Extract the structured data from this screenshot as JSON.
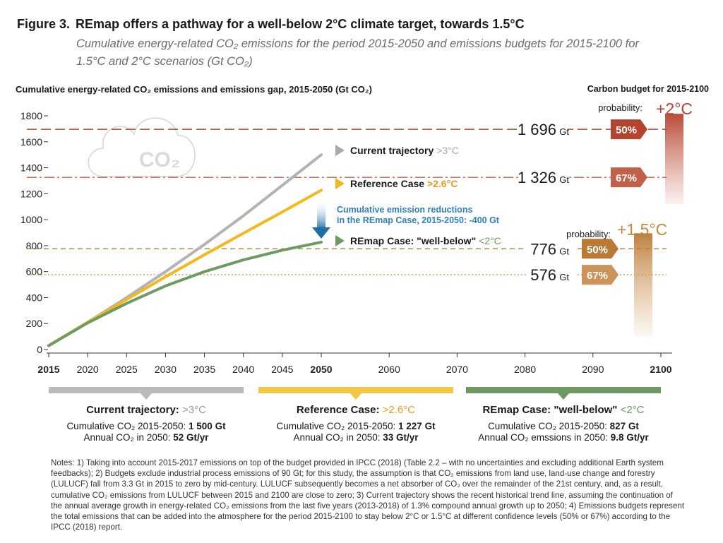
{
  "figure": {
    "number": "Figure 3.",
    "title": "REmap offers a pathway for a well-below 2°C climate target, towards 1.5°C",
    "subtitle": "Cumulative energy-related CO₂ emissions for the period 2015-2050 and emissions budgets for 2015-2100 for 1.5°C and 2°C scenarios (Gt CO₂)"
  },
  "chart_data": {
    "type": "line",
    "title": "Cumulative energy-related CO₂ emissions and emissions gap, 2015-2050 (Gt CO₂)",
    "right_title": "Carbon budget for 2015-2100",
    "ylim": [
      0,
      1800
    ],
    "yticks": [
      0,
      200,
      400,
      600,
      800,
      1000,
      1200,
      1400,
      1600,
      1800
    ],
    "xticks": [
      "2015",
      "2020",
      "2025",
      "2030",
      "2035",
      "2040",
      "2045",
      "2050",
      "2060",
      "2070",
      "2080",
      "2090",
      "2100"
    ],
    "bold_xticks": [
      "2015",
      "2050",
      "2100"
    ],
    "grid": false,
    "cloud_label": "CO₂",
    "series": [
      {
        "name": "Current trajectory",
        "tag": ">3°C",
        "color": "#b3b3b3",
        "x": [
          2015,
          2020,
          2025,
          2030,
          2035,
          2040,
          2045,
          2050
        ],
        "y": [
          30,
          210,
          400,
          600,
          810,
          1030,
          1265,
          1500
        ]
      },
      {
        "name": "Reference Case",
        "tag": ">2.6°C",
        "color": "#f2b81c",
        "x": [
          2015,
          2020,
          2025,
          2030,
          2035,
          2040,
          2045,
          2050
        ],
        "y": [
          30,
          210,
          385,
          560,
          730,
          895,
          1060,
          1227
        ]
      },
      {
        "name": "REmap Case: \"well-below\"",
        "tag": "<2°C",
        "color": "#6f9a62",
        "x": [
          2015,
          2020,
          2025,
          2030,
          2035,
          2040,
          2045,
          2050
        ],
        "y": [
          30,
          205,
          355,
          490,
          600,
          690,
          765,
          827
        ]
      }
    ],
    "reduction_annotation": {
      "line1": "Cumulative emission reductions",
      "line2": "in the REmap Case, 2015-2050: -400 Gt"
    },
    "budgets": [
      {
        "scenario": "+2°C",
        "value": 1696,
        "value_label": "1 696",
        "unit": "Gt",
        "probability": "50%",
        "color": "#b5442f"
      },
      {
        "scenario": "+2°C",
        "value": 1326,
        "value_label": "1 326",
        "unit": "Gt",
        "probability": "67%",
        "color": "#c2614a"
      },
      {
        "scenario": "+1.5°C",
        "value": 776,
        "value_label": "776",
        "unit": "Gt",
        "probability": "50%",
        "color": "#b97a36"
      },
      {
        "scenario": "+1.5°C",
        "value": 576,
        "value_label": "576",
        "unit": "Gt",
        "probability": "67%",
        "color": "#cc9359"
      }
    ],
    "budget_labels": {
      "probability": "probability:",
      "two_c": "+2°C",
      "one_five_c": "+1.5°C"
    }
  },
  "summaries": [
    {
      "title": "Current trajectory:",
      "tag": ">3°C",
      "color": "#bbbbbb",
      "tag_color": "#9a9a9a",
      "line1_label": "Cumulative CO₂ 2015-2050: ",
      "line1_value": "1 500 Gt",
      "line2_label": "Annual CO₂ in 2050: ",
      "line2_value": "52 Gt/yr"
    },
    {
      "title": "Reference Case:",
      "tag": ">2.6°C",
      "color": "#f2c744",
      "tag_color": "#e99a1c",
      "line1_label": "Cumulative CO₂ 2015-2050: ",
      "line1_value": "1 227 Gt",
      "line2_label": "Annual CO₂ in 2050: ",
      "line2_value": "33 Gt/yr"
    },
    {
      "title": "REmap Case: \"well-below\"",
      "tag": "<2°C",
      "color": "#6e9a61",
      "tag_color": "#6e9a61",
      "line1_label": "Cumulative CO₂ 2015-2050: ",
      "line1_value": "827 Gt",
      "line2_label": "Annual CO₂ emssions in 2050: ",
      "line2_value": "9.8 Gt/yr"
    }
  ],
  "notes": "Notes: 1) Taking into account 2015-2017 emissions on top of the budget provided in IPCC (2018) (Table 2.2 – with no uncertainties and excluding additional Earth system feedbacks); 2) Budgets exclude industrial process emissions of 90 Gt; for this study, the assumption is that CO₂ emissions from land use, land-use change and forestry (LULUCF) fall from 3.3 Gt in 2015 to zero by mid-century. LULUCF subsequently becomes a net absorber of CO₂ over the remainder of the 21st century, and, as a result, cumulative CO₂ emissions from LULUCF between 2015 and 2100 are close to zero; 3) Current trajectory shows the recent historical trend line, assuming the continuation of the annual average growth in energy-related CO₂ emissions from the last five years (2013-2018) of 1.3% compound annual growth up to 2050; 4) Emissions budgets represent the total emissions that can be added into the atmosphere for the period 2015-2100 to stay below 2°C or 1.5°C at different confidence levels (50% or 67%) according to the IPCC (2018) report."
}
